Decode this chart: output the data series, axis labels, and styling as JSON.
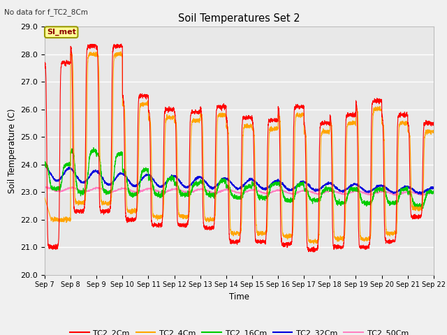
{
  "title": "Soil Temperatures Set 2",
  "ylabel": "Soil Temperature (C)",
  "xlabel": "Time",
  "top_left_note": "No data for f_TC2_8Cm",
  "box_label": "SI_met",
  "ylim": [
    20.0,
    29.0
  ],
  "yticks": [
    20.0,
    21.0,
    22.0,
    23.0,
    24.0,
    25.0,
    26.0,
    27.0,
    28.0,
    29.0
  ],
  "x_tick_labels": [
    "Sep 7",
    "Sep 8",
    "Sep 9",
    "Sep 10",
    "Sep 11",
    "Sep 12",
    "Sep 13",
    "Sep 14",
    "Sep 15",
    "Sep 16",
    "Sep 17",
    "Sep 18",
    "Sep 19",
    "Sep 20",
    "Sep 21",
    "Sep 22"
  ],
  "series": {
    "TC2_2Cm": {
      "color": "#FF0000",
      "linewidth": 0.8
    },
    "TC2_4Cm": {
      "color": "#FFA500",
      "linewidth": 0.8
    },
    "TC2_16Cm": {
      "color": "#00CC00",
      "linewidth": 0.9
    },
    "TC2_32Cm": {
      "color": "#0000DD",
      "linewidth": 0.9
    },
    "TC2_50Cm": {
      "color": "#FF80C0",
      "linewidth": 0.8
    }
  },
  "fig_bg_color": "#F0F0F0",
  "plot_bg_color": "#E8E8E8",
  "grid_color": "#FFFFFF",
  "n_days": 15
}
